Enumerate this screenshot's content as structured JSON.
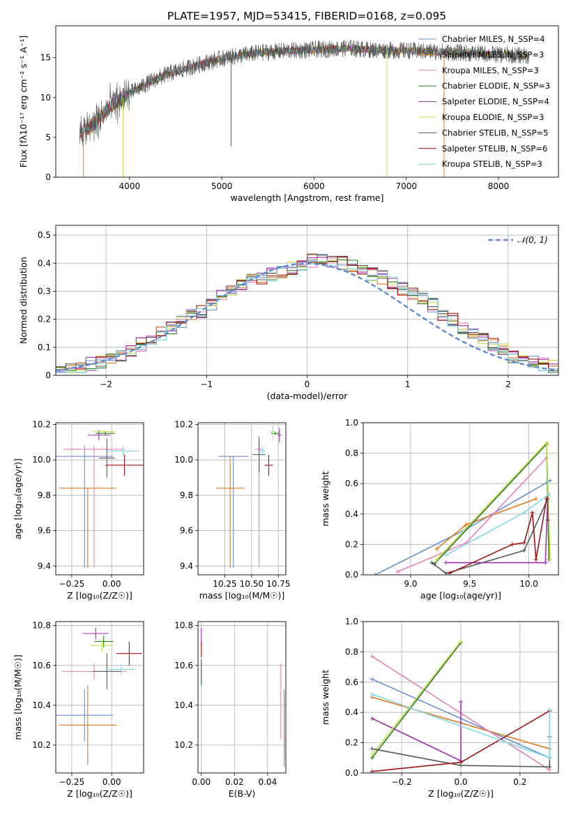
{
  "figure": {
    "title": "PLATE=1957, MJD=53415, FIBERID=0168, z=0.095"
  },
  "colors": {
    "Chabrier MILES": "#6b8fd6",
    "Salpeter MILES": "#e07a1f",
    "Kroupa MILES": "#e880b8",
    "Chabrier ELODIE": "#2a7a2a",
    "Salpeter ELODIE": "#9b2fae",
    "Kroupa ELODIE": "#c8e04a",
    "Chabrier STELIB": "#555555",
    "Salpeter STELIB": "#a01515",
    "Kroupa STELIB": "#7fd8e6"
  },
  "chart_data": [
    {
      "id": "spectrum",
      "type": "line",
      "xlabel": "wavelength [Angstrom, rest frame]",
      "ylabel": "Flux [fλ10⁻¹⁷ erg cm⁻² s⁻¹ A⁻¹]",
      "xlim": [
        3200,
        8650
      ],
      "ylim": [
        0,
        19
      ],
      "xticks": [
        4000,
        5000,
        6000,
        7000,
        8000
      ],
      "yticks": [
        0,
        5,
        10,
        15
      ],
      "legend_position": "top-right",
      "legend": [
        "Chabrier MILES, N_SSP=4",
        "Salpeter MILES, N_SSP=3",
        "Kroupa MILES, N_SSP=3",
        "Chabrier ELODIE, N_SSP=3",
        "Salpeter ELODIE, N_SSP=4",
        "Kroupa ELODIE, N_SSP=3",
        "Chabrier STELIB, N_SSP=5",
        "Salpeter STELIB, N_SSP=6",
        "Kroupa STELIB, N_SSP=3"
      ],
      "legend_series": [
        "Chabrier MILES",
        "Salpeter MILES",
        "Kroupa MILES",
        "Chabrier ELODIE",
        "Salpeter ELODIE",
        "Kroupa ELODIE",
        "Chabrier STELIB",
        "Salpeter STELIB",
        "Kroupa STELIB"
      ],
      "continuum": {
        "x": [
          3450,
          3600,
          3800,
          4000,
          4200,
          4400,
          4600,
          4800,
          5000,
          5200,
          5400,
          5600,
          5800,
          6000,
          6200,
          6400,
          6600,
          6800,
          7000,
          7200,
          7400,
          7600,
          7800,
          8000,
          8200,
          8350
        ],
        "y": [
          5.3,
          6.5,
          9.0,
          10.5,
          11.8,
          12.9,
          13.6,
          14.3,
          14.9,
          15.3,
          15.6,
          15.8,
          15.9,
          16.0,
          16.1,
          16.2,
          16.0,
          15.9,
          15.9,
          15.8,
          15.7,
          15.6,
          15.5,
          15.4,
          15.3,
          15.2
        ]
      },
      "dips": [
        {
          "series": "Salpeter MILES",
          "x": 3500,
          "y": 0
        },
        {
          "series": "Kroupa ELODIE",
          "x": 3930,
          "y": 0
        },
        {
          "series": "Chabrier STELIB",
          "x": 5100,
          "y": 3.9
        },
        {
          "series": "Kroupa ELODIE",
          "x": 6790,
          "y": 0
        },
        {
          "series": "Salpeter MILES",
          "x": 7410,
          "y": 0
        }
      ]
    },
    {
      "id": "residuals",
      "type": "line",
      "xlabel": "(data-model)/error",
      "ylabel": "Normed distribution",
      "xlim": [
        -2.5,
        2.5
      ],
      "ylim": [
        0,
        0.535
      ],
      "xticks": [
        -2,
        -1,
        0,
        1,
        2
      ],
      "xtick_labels": [
        "−2",
        "−1",
        "0",
        "1",
        "2"
      ],
      "yticks": [
        0.0,
        0.1,
        0.2,
        0.3,
        0.4,
        0.5
      ],
      "grid": true,
      "legend_position": "top-right",
      "legend": [
        "𝒩(0, 1)"
      ],
      "bin_edges": [
        -2.5,
        -2.4,
        -2.3,
        -2.2,
        -2.1,
        -2.0,
        -1.9,
        -1.8,
        -1.7,
        -1.6,
        -1.5,
        -1.4,
        -1.3,
        -1.2,
        -1.1,
        -1.0,
        -0.9,
        -0.8,
        -0.7,
        -0.6,
        -0.5,
        -0.4,
        -0.3,
        -0.2,
        -0.1,
        0.0,
        0.1,
        0.2,
        0.3,
        0.4,
        0.5,
        0.6,
        0.7,
        0.8,
        0.9,
        1.0,
        1.1,
        1.2,
        1.3,
        1.4,
        1.5,
        1.6,
        1.7,
        1.8,
        1.9,
        2.0,
        2.1,
        2.2,
        2.3,
        2.4,
        2.5
      ],
      "histogram_base": [
        0.02,
        0.02,
        0.03,
        0.04,
        0.05,
        0.06,
        0.07,
        0.09,
        0.11,
        0.13,
        0.15,
        0.17,
        0.19,
        0.21,
        0.23,
        0.25,
        0.28,
        0.3,
        0.32,
        0.34,
        0.35,
        0.36,
        0.37,
        0.38,
        0.39,
        0.41,
        0.42,
        0.41,
        0.4,
        0.39,
        0.38,
        0.36,
        0.35,
        0.33,
        0.31,
        0.29,
        0.27,
        0.25,
        0.22,
        0.2,
        0.17,
        0.15,
        0.13,
        0.11,
        0.09,
        0.07,
        0.06,
        0.05,
        0.04,
        0.03
      ]
    },
    {
      "id": "age-vs-z",
      "type": "scatter",
      "xlabel": "Z [log₁₀(Z/Z☉)]",
      "ylabel": "age  [log₁₀(age/yr)]",
      "xlim": [
        -0.35,
        0.2
      ],
      "ylim": [
        9.35,
        10.21
      ],
      "xticks": [
        -0.25,
        0.0
      ],
      "xtick_labels": [
        "−0.25",
        "0.00"
      ],
      "yticks": [
        9.4,
        9.6,
        9.8,
        10.0,
        10.2
      ],
      "ytick_labels": [
        "9.4",
        "9.6",
        "9.8",
        "10.0",
        "10.2"
      ],
      "grid": true,
      "points": [
        {
          "series": "Chabrier MILES",
          "x": -0.17,
          "xerr": 0.18,
          "y": 10.02,
          "yerr": 0.06,
          "ylow": 9.39
        },
        {
          "series": "Salpeter MILES",
          "x": -0.15,
          "xerr": 0.18,
          "y": 9.84,
          "yerr": 0.0,
          "ylow": 9.39
        },
        {
          "series": "Kroupa MILES",
          "x": -0.11,
          "xerr": 0.19,
          "y": 10.06,
          "ylow": 9.39,
          "yhigh": 10.08
        },
        {
          "series": "Chabrier ELODIE",
          "x": -0.04,
          "xerr": 0.06,
          "y": 10.15,
          "yerr": 0.01
        },
        {
          "series": "Salpeter ELODIE",
          "x": -0.08,
          "xerr": 0.07,
          "y": 10.14,
          "yerr": 0.03
        },
        {
          "series": "Kroupa ELODIE",
          "x": -0.05,
          "xerr": 0.07,
          "y": 10.16,
          "yerr": 0.01
        },
        {
          "series": "Chabrier STELIB",
          "x": -0.03,
          "xerr": 0.05,
          "y": 10.01,
          "yerr": 0.11
        },
        {
          "series": "Salpeter STELIB",
          "x": 0.08,
          "xerr": 0.12,
          "y": 9.97,
          "yerr": 0.06
        },
        {
          "series": "Kroupa STELIB",
          "x": 0.07,
          "xerr": 0.1,
          "y": 10.05,
          "yerr": 0.03
        }
      ]
    },
    {
      "id": "age-vs-mass",
      "type": "scatter",
      "xlabel": "mass [log₁₀(M/M☉)]",
      "ylabel": "",
      "xlim": [
        10.0,
        10.82
      ],
      "ylim": [
        9.35,
        10.21
      ],
      "xticks": [
        10.25,
        10.5,
        10.75
      ],
      "xtick_labels": [
        "10.25",
        "10.50",
        "10.75"
      ],
      "yticks": [
        9.4,
        9.6,
        9.8,
        10.0,
        10.2
      ],
      "ytick_labels": [
        "9.4",
        "9.6",
        "9.8",
        "10.0",
        "10.2"
      ],
      "grid": true,
      "points": [
        {
          "series": "Chabrier MILES",
          "x": 10.33,
          "xerr": 0.14,
          "y": 10.02,
          "ylow": 9.39,
          "yhigh": 10.02
        },
        {
          "series": "Salpeter MILES",
          "x": 10.3,
          "xerr": 0.13,
          "y": 9.84,
          "ylow": 9.39,
          "yhigh": 10.02
        },
        {
          "series": "Kroupa MILES",
          "x": 10.57,
          "xerr": 0.04,
          "y": 10.06,
          "ylow": 9.39,
          "yhigh": 10.08
        },
        {
          "series": "Chabrier ELODIE",
          "x": 10.72,
          "xerr": 0.04,
          "y": 10.15,
          "yerr": 0.01
        },
        {
          "series": "Salpeter ELODIE",
          "x": 10.76,
          "xerr": 0.02,
          "y": 10.14,
          "yerr": 0.04
        },
        {
          "series": "Kroupa ELODIE",
          "x": 10.7,
          "xerr": 0.02,
          "y": 10.16,
          "yerr": 0.05
        },
        {
          "series": "Chabrier STELIB",
          "x": 10.57,
          "xerr": 0.06,
          "y": 10.03,
          "yerr": 0.1
        },
        {
          "series": "Salpeter STELIB",
          "x": 10.66,
          "xerr": 0.04,
          "y": 9.97,
          "yerr": 0.06
        },
        {
          "series": "Kroupa STELIB",
          "x": 10.6,
          "xerr": 0.03,
          "y": 10.05,
          "yerr": 0.03
        }
      ]
    },
    {
      "id": "massweight-vs-age",
      "type": "line",
      "xlabel": "age  [log₁₀(age/yr)]",
      "ylabel": "mass weight",
      "xlim": [
        8.6,
        10.25
      ],
      "ylim": [
        0,
        1.0
      ],
      "xticks": [
        9.0,
        9.5,
        10.0
      ],
      "xtick_labels": [
        "9.0",
        "9.5",
        "10.0"
      ],
      "yticks": [
        0.0,
        0.2,
        0.4,
        0.6,
        0.8,
        1.0
      ],
      "ytick_labels": [
        "0.0",
        "0.2",
        "0.4",
        "0.6",
        "0.8",
        "1.0"
      ],
      "grid": true,
      "series": [
        {
          "series": "Chabrier MILES",
          "x": [
            8.7,
            9.47,
            10.18
          ],
          "y": [
            0.0,
            0.3,
            0.62
          ]
        },
        {
          "series": "Salpeter MILES",
          "x": [
            9.22,
            9.47,
            10.06
          ],
          "y": [
            0.17,
            0.33,
            0.5
          ]
        },
        {
          "series": "Kroupa MILES",
          "x": [
            8.89,
            9.47,
            10.15
          ],
          "y": [
            0.02,
            0.21,
            0.77
          ]
        },
        {
          "series": "Chabrier ELODIE",
          "x": [
            9.2,
            10.15,
            10.17
          ],
          "y": [
            0.07,
            0.86,
            0.1
          ]
        },
        {
          "series": "Salpeter ELODIE",
          "x": [
            9.3,
            10.14,
            10.16
          ],
          "y": [
            0.08,
            0.08,
            0.52
          ]
        },
        {
          "series": "Kroupa ELODIE",
          "x": [
            9.22,
            10.15,
            10.18
          ],
          "y": [
            0.1,
            0.87,
            0.1
          ]
        },
        {
          "series": "Chabrier STELIB",
          "x": [
            9.18,
            9.3,
            9.96,
            10.16,
            10.16
          ],
          "y": [
            0.08,
            0.01,
            0.16,
            0.5,
            0.36
          ]
        },
        {
          "series": "Salpeter STELIB",
          "x": [
            9.33,
            9.86,
            9.96,
            10.03,
            10.06,
            10.15
          ],
          "y": [
            0.01,
            0.2,
            0.21,
            0.41,
            0.1,
            0.5
          ]
        },
        {
          "series": "Kroupa STELIB",
          "x": [
            9.3,
            9.96,
            10.17
          ],
          "y": [
            0.13,
            0.41,
            0.53
          ]
        }
      ]
    },
    {
      "id": "mass-vs-z",
      "type": "scatter",
      "xlabel": "Z [log₁₀(Z/Z☉)]",
      "ylabel": "mass [log₁₀(M/M☉)]",
      "xlim": [
        -0.35,
        0.2
      ],
      "ylim": [
        10.06,
        10.82
      ],
      "xticks": [
        -0.25,
        0.0
      ],
      "xtick_labels": [
        "−0.25",
        "0.00"
      ],
      "yticks": [
        10.2,
        10.4,
        10.6,
        10.8
      ],
      "ytick_labels": [
        "10.2",
        "10.4",
        "10.6",
        "10.8"
      ],
      "grid": true,
      "points": [
        {
          "series": "Chabrier MILES",
          "x": -0.17,
          "xerr": 0.18,
          "y": 10.35,
          "yerr": 0.13
        },
        {
          "series": "Salpeter MILES",
          "x": -0.15,
          "xerr": 0.18,
          "y": 10.3,
          "yerr": 0.2
        },
        {
          "series": "Kroupa MILES",
          "x": -0.11,
          "xerr": 0.2,
          "y": 10.57,
          "yerr": 0.04
        },
        {
          "series": "Chabrier ELODIE",
          "x": -0.05,
          "xerr": 0.06,
          "y": 10.72,
          "yerr": 0.03
        },
        {
          "series": "Salpeter ELODIE",
          "x": -0.1,
          "xerr": 0.08,
          "y": 10.76,
          "yerr": 0.03
        },
        {
          "series": "Kroupa ELODIE",
          "x": -0.06,
          "xerr": 0.07,
          "y": 10.7,
          "yerr": 0.03
        },
        {
          "series": "Chabrier STELIB",
          "x": -0.03,
          "xerr": 0.09,
          "y": 10.57,
          "yerr": 0.09
        },
        {
          "series": "Salpeter STELIB",
          "x": 0.11,
          "xerr": 0.08,
          "y": 10.66,
          "yerr": 0.06
        },
        {
          "series": "Kroupa STELIB",
          "x": 0.06,
          "xerr": 0.09,
          "y": 10.58,
          "yerr": 0.03
        }
      ]
    },
    {
      "id": "mass-vs-ebv",
      "type": "scatter",
      "xlabel": "E(B-V)",
      "ylabel": "",
      "xlim": [
        -0.002,
        0.051
      ],
      "ylim": [
        10.06,
        10.82
      ],
      "xticks": [
        0.0,
        0.02,
        0.04
      ],
      "xtick_labels": [
        "0.00",
        "0.02",
        "0.04"
      ],
      "yticks": [
        10.2,
        10.4,
        10.6,
        10.8
      ],
      "ytick_labels": [
        "10.2",
        "10.4",
        "10.6",
        "10.8"
      ],
      "grid": true,
      "points": [
        {
          "series": "Kroupa MILES",
          "x": 0.048,
          "ylow": 10.23,
          "yhigh": 10.61
        },
        {
          "series": "Salpeter MILES",
          "x": 0.05,
          "ylow": 10.09,
          "yhigh": 10.46
        },
        {
          "series": "Chabrier MILES",
          "x": 0.05,
          "ylow": 10.12,
          "yhigh": 10.48
        },
        {
          "series": "Salpeter ELODIE",
          "x": 0.0,
          "ylow": 10.7,
          "yhigh": 10.79
        },
        {
          "series": "Salpeter STELIB",
          "x": 0.0,
          "ylow": 10.64,
          "yhigh": 10.72
        },
        {
          "series": "Kroupa STELIB",
          "x": 0.0,
          "ylow": 10.49,
          "yhigh": 10.6
        },
        {
          "series": "Chabrier STELIB",
          "x": 0.0,
          "ylow": 10.5,
          "yhigh": 10.63
        }
      ]
    },
    {
      "id": "massweight-vs-z",
      "type": "line",
      "xlabel": "Z [log₁₀(Z/Z☉)]",
      "ylabel": "mass weight",
      "xlim": [
        -0.33,
        0.33
      ],
      "ylim": [
        0,
        1.0
      ],
      "xticks": [
        -0.2,
        0.0,
        0.2
      ],
      "xtick_labels": [
        "−0.2",
        "0.0",
        "0.2"
      ],
      "yticks": [
        0.0,
        0.2,
        0.4,
        0.6,
        0.8,
        1.0
      ],
      "ytick_labels": [
        "0.0",
        "0.2",
        "0.4",
        "0.6",
        "0.8",
        "1.0"
      ],
      "grid": true,
      "series": [
        {
          "series": "Chabrier MILES",
          "x": [
            -0.3,
            0.3
          ],
          "y": [
            0.62,
            0.1
          ]
        },
        {
          "series": "Salpeter MILES",
          "x": [
            -0.3,
            0.3
          ],
          "y": [
            0.5,
            0.16
          ]
        },
        {
          "series": "Kroupa MILES",
          "x": [
            -0.3,
            0.3
          ],
          "y": [
            0.77,
            0.02
          ]
        },
        {
          "series": "Chabrier ELODIE",
          "x": [
            -0.3,
            0.0
          ],
          "y": [
            0.1,
            0.86
          ]
        },
        {
          "series": "Salpeter ELODIE",
          "x": [
            -0.3,
            0.0,
            0.0
          ],
          "y": [
            0.36,
            0.08,
            0.47
          ]
        },
        {
          "series": "Kroupa ELODIE",
          "x": [
            -0.3,
            0.0
          ],
          "y": [
            0.12,
            0.87
          ]
        },
        {
          "series": "Chabrier STELIB",
          "x": [
            -0.3,
            0.0,
            0.3,
            0.3
          ],
          "y": [
            0.16,
            0.05,
            0.04,
            0.24
          ]
        },
        {
          "series": "Salpeter STELIB",
          "x": [
            -0.3,
            0.0,
            0.3
          ],
          "y": [
            0.01,
            0.07,
            0.41
          ]
        },
        {
          "series": "Kroupa STELIB",
          "x": [
            -0.3,
            0.3,
            0.3
          ],
          "y": [
            0.52,
            0.1,
            0.42
          ]
        }
      ]
    }
  ]
}
